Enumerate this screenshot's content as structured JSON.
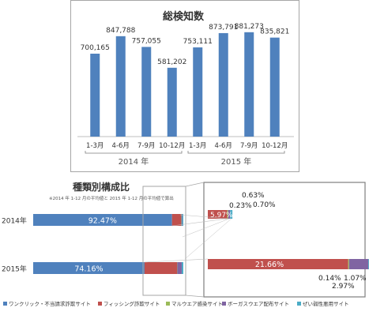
{
  "chart_data": [
    {
      "type": "bar",
      "title": "総検知数",
      "categories": [
        "1-3月",
        "4-6月",
        "7-9月",
        "10-12月",
        "1-3月",
        "4-6月",
        "7-9月",
        "10-12月"
      ],
      "groups": [
        {
          "label": "2014 年",
          "from": 0,
          "to": 3
        },
        {
          "label": "2015 年",
          "from": 4,
          "to": 7
        }
      ],
      "values": [
        700165,
        847788,
        757055,
        581202,
        753111,
        873791,
        881273,
        835821
      ],
      "value_labels": [
        "700,165",
        "847,788",
        "757,055",
        "581,202",
        "753,111",
        "873,791",
        "881,273",
        "835,821"
      ],
      "ylim": [
        0,
        1000000
      ],
      "color": "#4f81bd",
      "grid": false
    },
    {
      "type": "stacked-bar-horizontal",
      "title": "種類別構成比",
      "subtitle": "※2014 年 1-12 月の平均値と 2015 年 1-12 月の平均値で算出",
      "categories": [
        "2014年",
        "2015年"
      ],
      "series": [
        {
          "name": "ワンクリック・不当請求詐欺サイト",
          "color": "#4f81bd",
          "values": [
            92.47,
            74.16
          ]
        },
        {
          "name": "フィッシング詐欺サイト",
          "color": "#c0504d",
          "values": [
            5.97,
            21.66
          ]
        },
        {
          "name": "マルウエア感染サイト",
          "color": "#9bbb59",
          "values": [
            0.23,
            0.14
          ]
        },
        {
          "name": "ボーガスウエア配布サイト",
          "color": "#8064a2",
          "values": [
            0.63,
            2.97
          ]
        },
        {
          "name": "ぜい弱性悪用サイト",
          "color": "#4bacc6",
          "values": [
            0.7,
            1.07
          ]
        }
      ],
      "bar_labels": [
        {
          "category": "2014年",
          "series": "ワンクリック・不当請求詐欺サイト",
          "text": "92.47%"
        },
        {
          "category": "2015年",
          "series": "ワンクリック・不当請求詐欺サイト",
          "text": "74.16%"
        }
      ],
      "zoom_labels": {
        "2014": [
          "5.97%",
          "0.23%",
          "0.63%",
          "0.70%"
        ],
        "2015": [
          "21.66%",
          "0.14%",
          "2.97%",
          "1.07%"
        ]
      },
      "xlim": [
        0,
        100
      ],
      "legend_position": "bottom"
    }
  ]
}
